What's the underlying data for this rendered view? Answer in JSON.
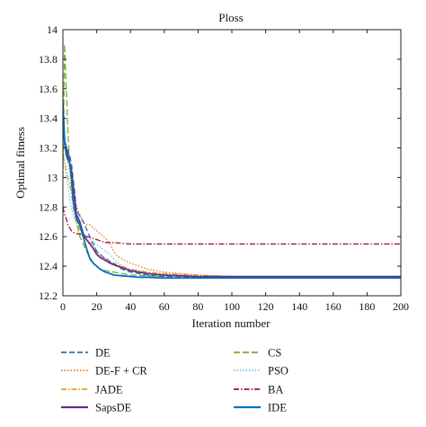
{
  "chart_data": {
    "type": "line",
    "title": "Ploss",
    "xlabel": "Iteration number",
    "ylabel": "Optimal fitness",
    "xlim": [
      0,
      200
    ],
    "ylim": [
      12.2,
      14
    ],
    "xticks": [
      0,
      20,
      40,
      60,
      80,
      100,
      120,
      140,
      160,
      180,
      200
    ],
    "yticks": [
      12.2,
      12.4,
      12.6,
      12.8,
      13,
      13.2,
      13.4,
      13.6,
      13.8,
      14
    ],
    "grid": false,
    "legend_position": "below",
    "series": [
      {
        "name": "DE",
        "color": "#2e6db4",
        "dash": "6,3",
        "x": [
          0,
          1,
          2,
          3,
          4,
          5,
          6,
          7,
          8,
          10,
          12,
          14,
          16,
          18,
          20,
          22,
          24,
          26,
          28,
          30,
          32,
          35,
          40,
          45,
          50,
          60,
          70,
          80,
          100,
          120,
          150,
          200
        ],
        "y": [
          13.3,
          13.22,
          13.2,
          13.18,
          13.15,
          13.1,
          13.0,
          12.9,
          12.78,
          12.74,
          12.7,
          12.65,
          12.6,
          12.55,
          12.5,
          12.48,
          12.46,
          12.45,
          12.43,
          12.42,
          12.4,
          12.38,
          12.36,
          12.35,
          12.34,
          12.33,
          12.33,
          12.325,
          12.325,
          12.325,
          12.32,
          12.32
        ]
      },
      {
        "name": "DE-F + CR",
        "color": "#e07b2a",
        "dash": "1.5,2",
        "x": [
          0,
          1,
          2,
          3,
          4,
          5,
          6,
          8,
          10,
          12,
          14,
          16,
          18,
          20,
          22,
          24,
          26,
          28,
          30,
          32,
          35,
          40,
          45,
          50,
          60,
          70,
          80,
          100,
          150,
          200
        ],
        "y": [
          13.25,
          13.2,
          13.15,
          13.1,
          13.05,
          12.98,
          12.9,
          12.8,
          12.75,
          12.7,
          12.68,
          12.68,
          12.66,
          12.64,
          12.62,
          12.6,
          12.58,
          12.55,
          12.5,
          12.47,
          12.45,
          12.42,
          12.4,
          12.38,
          12.36,
          12.35,
          12.34,
          12.33,
          12.33,
          12.33
        ]
      },
      {
        "name": "JADE",
        "color": "#e3a21a",
        "dash": "6,2,1.5,2",
        "x": [
          0,
          1,
          2,
          3,
          4,
          5,
          6,
          8,
          10,
          12,
          14,
          16,
          18,
          20,
          22,
          25,
          28,
          30,
          35,
          40,
          50,
          60,
          80,
          100,
          150,
          200
        ],
        "y": [
          13.15,
          13.1,
          13.05,
          13.0,
          12.95,
          12.9,
          12.8,
          12.7,
          12.65,
          12.6,
          12.58,
          12.56,
          12.55,
          12.5,
          12.48,
          12.45,
          12.43,
          12.42,
          12.4,
          12.38,
          12.36,
          12.35,
          12.34,
          12.33,
          12.33,
          12.33
        ]
      },
      {
        "name": "SapsDE",
        "color": "#6a2c8c",
        "dash": "",
        "x": [
          0,
          1,
          2,
          3,
          4,
          5,
          6,
          7,
          8,
          10,
          12,
          14,
          16,
          18,
          20,
          22,
          25,
          28,
          30,
          35,
          40,
          45,
          50,
          60,
          70,
          80,
          100,
          150,
          200
        ],
        "y": [
          13.5,
          13.25,
          13.2,
          13.15,
          13.1,
          13.05,
          12.95,
          12.85,
          12.75,
          12.7,
          12.62,
          12.58,
          12.55,
          12.52,
          12.48,
          12.46,
          12.44,
          12.42,
          12.41,
          12.39,
          12.37,
          12.36,
          12.35,
          12.34,
          12.335,
          12.33,
          12.33,
          12.33,
          12.33
        ]
      },
      {
        "name": "CS",
        "color": "#77ac30",
        "dash": "7,3",
        "x": [
          0,
          1,
          2,
          3,
          4,
          5,
          6,
          7,
          8,
          10,
          12,
          14,
          16,
          18,
          20,
          22,
          25,
          30,
          35,
          40,
          50,
          60,
          80,
          100,
          150,
          200
        ],
        "y": [
          13.0,
          13.9,
          13.6,
          13.3,
          13.1,
          12.95,
          12.85,
          12.78,
          12.7,
          12.6,
          12.55,
          12.5,
          12.46,
          12.42,
          12.4,
          12.38,
          12.37,
          12.36,
          12.35,
          12.34,
          12.335,
          12.33,
          12.33,
          12.325,
          12.325,
          12.325
        ]
      },
      {
        "name": "PSO",
        "color": "#4dbeee",
        "dash": "1.2,2.2",
        "x": [
          0,
          1,
          2,
          3,
          4,
          5,
          6,
          8,
          10,
          12,
          14,
          16,
          18,
          20,
          22,
          25,
          28,
          30,
          33,
          35,
          40,
          50,
          60,
          80,
          100,
          150,
          200
        ],
        "y": [
          13.2,
          13.1,
          13.0,
          12.95,
          12.85,
          12.8,
          12.75,
          12.7,
          12.66,
          12.62,
          12.6,
          12.58,
          12.56,
          12.55,
          12.53,
          12.5,
          12.48,
          12.45,
          12.42,
          12.4,
          12.37,
          12.35,
          12.34,
          12.33,
          12.33,
          12.33,
          12.33
        ]
      },
      {
        "name": "BA",
        "color": "#a2142f",
        "dash": "6,2,1.5,2",
        "x": [
          0,
          1,
          2,
          3,
          4,
          5,
          6,
          8,
          10,
          12,
          15,
          20,
          25,
          30,
          40,
          60,
          80,
          100,
          150,
          200
        ],
        "y": [
          12.8,
          12.75,
          12.72,
          12.68,
          12.66,
          12.64,
          12.63,
          12.62,
          12.62,
          12.6,
          12.6,
          12.58,
          12.56,
          12.56,
          12.55,
          12.55,
          12.55,
          12.55,
          12.55,
          12.55
        ]
      },
      {
        "name": "IDE",
        "color": "#0072bd",
        "dash": "",
        "x": [
          0,
          1,
          2,
          3,
          4,
          5,
          6,
          7,
          8,
          10,
          12,
          14,
          16,
          18,
          20,
          22,
          25,
          28,
          30,
          35,
          40,
          45,
          50,
          60,
          70,
          80,
          100,
          150,
          200
        ],
        "y": [
          13.5,
          13.25,
          13.15,
          13.12,
          13.1,
          13.0,
          12.85,
          12.78,
          12.72,
          12.68,
          12.6,
          12.52,
          12.45,
          12.42,
          12.4,
          12.38,
          12.36,
          12.35,
          12.34,
          12.335,
          12.33,
          12.325,
          12.325,
          12.32,
          12.32,
          12.32,
          12.32,
          12.32,
          12.32
        ]
      }
    ]
  }
}
